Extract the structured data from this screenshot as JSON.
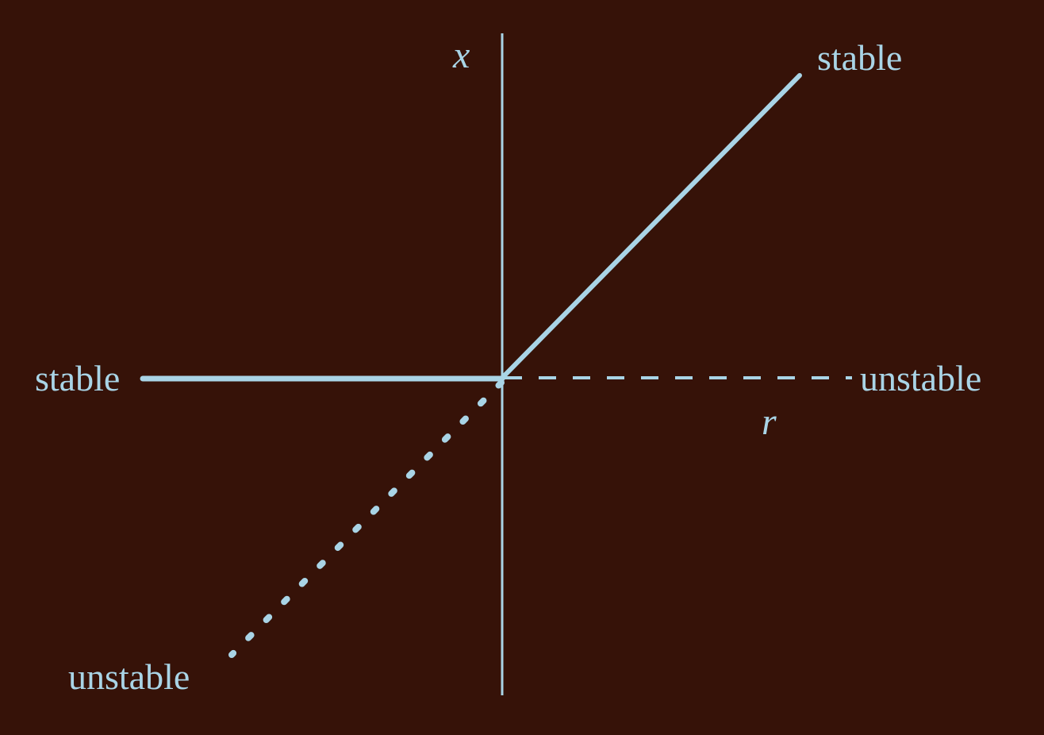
{
  "colors": {
    "background": "#361208",
    "ink": "#a9d4e6"
  },
  "axes": {
    "vertical_label": "x",
    "horizontal_label": "r"
  },
  "branches": {
    "upper_right": {
      "label": "stable",
      "style": "solid"
    },
    "left_axis": {
      "label": "stable",
      "style": "solid"
    },
    "right_axis": {
      "label": "unstable",
      "style": "dashed"
    },
    "lower_left": {
      "label": "unstable",
      "style": "dotted"
    }
  }
}
